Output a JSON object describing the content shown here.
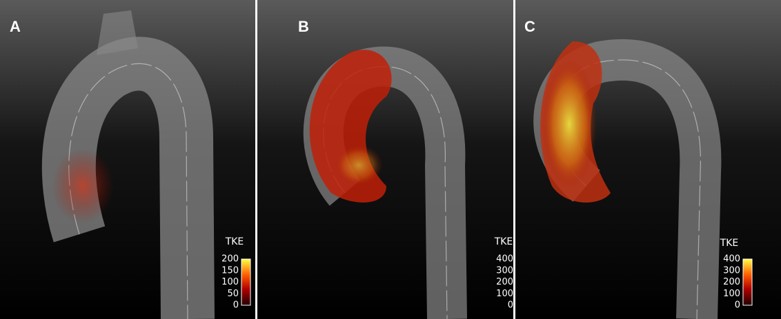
{
  "panels": [
    {
      "label": "A",
      "colorbar": {
        "title": "TKE",
        "ticks": [
          0,
          50,
          100,
          150,
          200
        ]
      }
    },
    {
      "label": "B",
      "colorbar": {
        "title": "TKE",
        "ticks": [
          0,
          100,
          200,
          300,
          400
        ]
      }
    },
    {
      "label": "C",
      "colorbar": {
        "title": "TKE",
        "ticks": [
          0,
          100,
          200,
          300,
          400
        ]
      }
    }
  ]
}
